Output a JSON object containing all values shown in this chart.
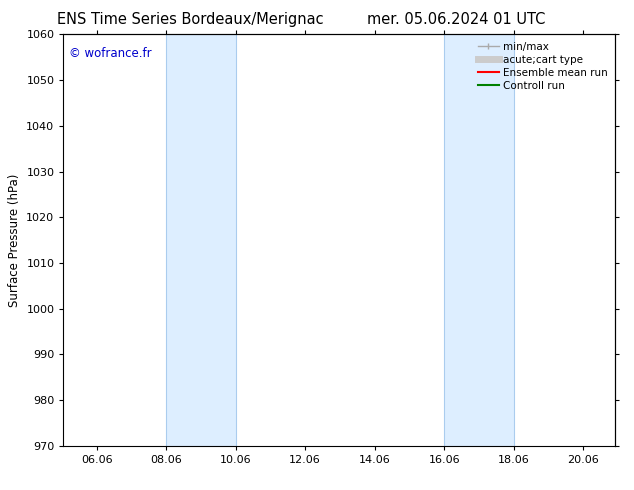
{
  "title_left": "ENS Time Series Bordeaux/Merignac",
  "title_right": "mer. 05.06.2024 01 UTC",
  "ylabel": "Surface Pressure (hPa)",
  "ylim": [
    970,
    1060
  ],
  "yticks": [
    970,
    980,
    990,
    1000,
    1010,
    1020,
    1030,
    1040,
    1050,
    1060
  ],
  "xtick_labels": [
    "06.06",
    "08.06",
    "10.06",
    "12.06",
    "14.06",
    "16.06",
    "18.06",
    "20.06"
  ],
  "xtick_hours": [
    23,
    71,
    119,
    167,
    215,
    263,
    311,
    359
  ],
  "xlim": [
    0,
    381
  ],
  "band_ranges": [
    [
      71,
      119
    ],
    [
      263,
      311
    ]
  ],
  "bg_color": "#ffffff",
  "band_color": "#ddeeff",
  "band_edge_color": "#aaccee",
  "watermark_text": "© wofrance.fr",
  "watermark_color": "#0000cc",
  "legend_items": [
    {
      "label": "min/max",
      "color": "#aaaaaa",
      "lw": 1.0
    },
    {
      "label": "acute;cart type",
      "color": "#cccccc",
      "lw": 5
    },
    {
      "label": "Ensemble mean run",
      "color": "#ff0000",
      "lw": 1.5
    },
    {
      "label": "Controll run",
      "color": "#008000",
      "lw": 1.5
    }
  ],
  "spine_color": "#000000",
  "title_fontsize": 10.5,
  "axis_label_fontsize": 8.5,
  "tick_fontsize": 8,
  "legend_fontsize": 7.5
}
